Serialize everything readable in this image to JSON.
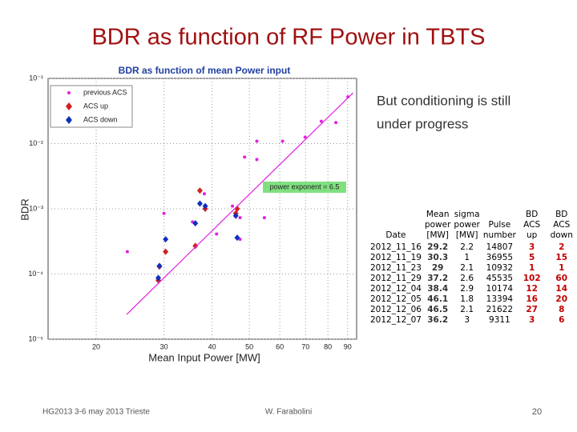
{
  "slide_title": "BDR as function of RF Power in TBTS",
  "note": [
    "But conditioning is still",
    "under progress"
  ],
  "chart_data": {
    "type": "scatter",
    "title": "BDR as function of mean Power input",
    "x_label": "Mean Input Power [MW]",
    "y_label": "BDR",
    "xlog": true,
    "ylog": true,
    "grid": true,
    "xlim": [
      15,
      95
    ],
    "xticks": [
      20,
      30,
      40,
      50,
      60,
      70,
      80,
      90
    ],
    "ylim": [
      1e-05,
      0.1
    ],
    "yticks": [
      {
        "value": 0.1,
        "label": "10⁻¹"
      },
      {
        "value": 0.01,
        "label": "10⁻²"
      },
      {
        "value": 0.001,
        "label": "10⁻³"
      },
      {
        "value": 0.0001,
        "label": "10⁻⁴"
      },
      {
        "value": 1e-05,
        "label": "10⁻⁵"
      }
    ],
    "legend": "upper left",
    "annotation": "power exponent = 6.5",
    "series": [
      {
        "name": "previous ACS",
        "color": "#e020e0",
        "marker": "dot",
        "x": [
          90.2,
          76.9,
          83.9,
          69.8,
          61,
          52.3,
          48.6,
          52.3,
          45.2,
          47.3,
          54.7,
          41.1,
          47.3,
          24.1,
          30,
          35.6,
          38.2
        ],
        "values": [
          0.052,
          0.022,
          0.021,
          0.0126,
          0.0109,
          0.0109,
          0.0062,
          0.0057,
          0.0011,
          0.00073,
          0.00073,
          0.00041,
          0.00034,
          0.00022,
          0.00085,
          0.00063,
          0.0017
        ]
      },
      {
        "name": "ACS up",
        "color": "#d02020",
        "marker": "diamond",
        "x": [
          29.2,
          30.3,
          29,
          37.2,
          38.4,
          46.1,
          46.5,
          36.2
        ],
        "values": [
          0.00013,
          0.00022,
          8e-05,
          0.0019,
          0.001,
          0.00085,
          0.001,
          0.00027
        ]
      },
      {
        "name": "ACS down",
        "color": "#1030c0",
        "marker": "diamond",
        "x": [
          29.2,
          30.3,
          29,
          37.2,
          38.4,
          46.1,
          46.5,
          36.2
        ],
        "values": [
          0.000133,
          0.00034,
          8.7e-05,
          0.0012,
          0.0011,
          0.00078,
          0.00036,
          0.0006
        ]
      },
      {
        "color": "#e020e0",
        "marker": "line",
        "x": [
          24,
          93
        ],
        "values": [
          2.4e-05,
          0.06
        ]
      }
    ]
  },
  "table": {
    "header": [
      [
        "Date"
      ],
      [
        "Mean",
        "power",
        "[MW]"
      ],
      [
        "sigma",
        "power",
        "[MW]"
      ],
      [
        "Pulse",
        "number"
      ],
      [
        "BD ACS",
        "up"
      ],
      [
        "BD ACS",
        "down"
      ]
    ],
    "rows": [
      [
        "2012_11_16",
        "29.2",
        "2.2",
        "14807",
        "3",
        "2"
      ],
      [
        "2012_11_19",
        "30.3",
        "1",
        "36955",
        "5",
        "15"
      ],
      [
        "2012_11_23",
        "29",
        "2.1",
        "10932",
        "1",
        "1"
      ],
      [
        "2012_11_29",
        "37.2",
        "2.6",
        "45535",
        "102",
        "60"
      ],
      [
        "2012_12_04",
        "38.4",
        "2.9",
        "10174",
        "12",
        "14"
      ],
      [
        "2012_12_05",
        "46.1",
        "1.8",
        "13394",
        "16",
        "20"
      ],
      [
        "2012_12_06",
        "46.5",
        "2.1",
        "21622",
        "27",
        "8"
      ],
      [
        "2012_12_07",
        "36.2",
        "3",
        "9311",
        "3",
        "6"
      ]
    ]
  },
  "footer": {
    "left": "HG2013 3-6 may 2013 Trieste",
    "center": "W. Farabolini",
    "page": "20"
  }
}
